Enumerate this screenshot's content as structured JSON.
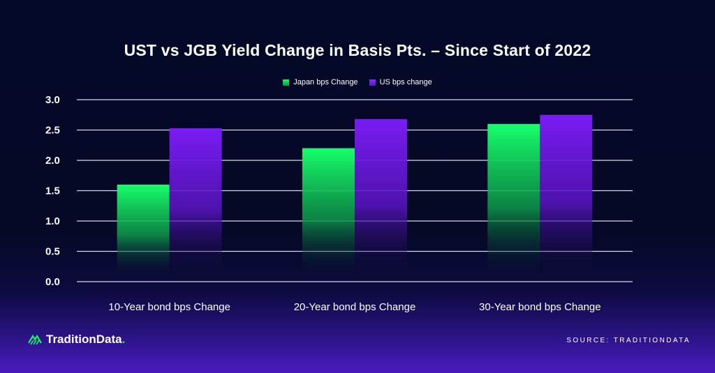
{
  "chart_data": {
    "type": "bar",
    "title": "UST vs JGB Yield Change in Basis Pts. – Since Start of 2022",
    "categories": [
      "10-Year bond bps Change",
      "20-Year bond bps Change",
      "30-Year bond bps Change"
    ],
    "series": [
      {
        "name": "Japan bps Change",
        "values": [
          1.6,
          2.2,
          2.6
        ],
        "color": "#19f06a"
      },
      {
        "name": "US bps change",
        "values": [
          2.53,
          2.68,
          2.75
        ],
        "color": "#7a1cf5"
      }
    ],
    "yticks": [
      "0.0",
      "0.5",
      "1.0",
      "1.5",
      "2.0",
      "2.5",
      "3.0"
    ],
    "ylim": [
      0,
      3.0
    ],
    "xlabel": "",
    "ylabel": "",
    "grid": true,
    "legend_position": "top-center"
  },
  "footer": {
    "brand": "TraditionData",
    "brand_dot": ".",
    "source": "SOURCE: TRADITIONDATA"
  },
  "colors": {
    "japan_top": "#16ff6a",
    "us_top": "#7a1cf5",
    "background": "#040827"
  }
}
